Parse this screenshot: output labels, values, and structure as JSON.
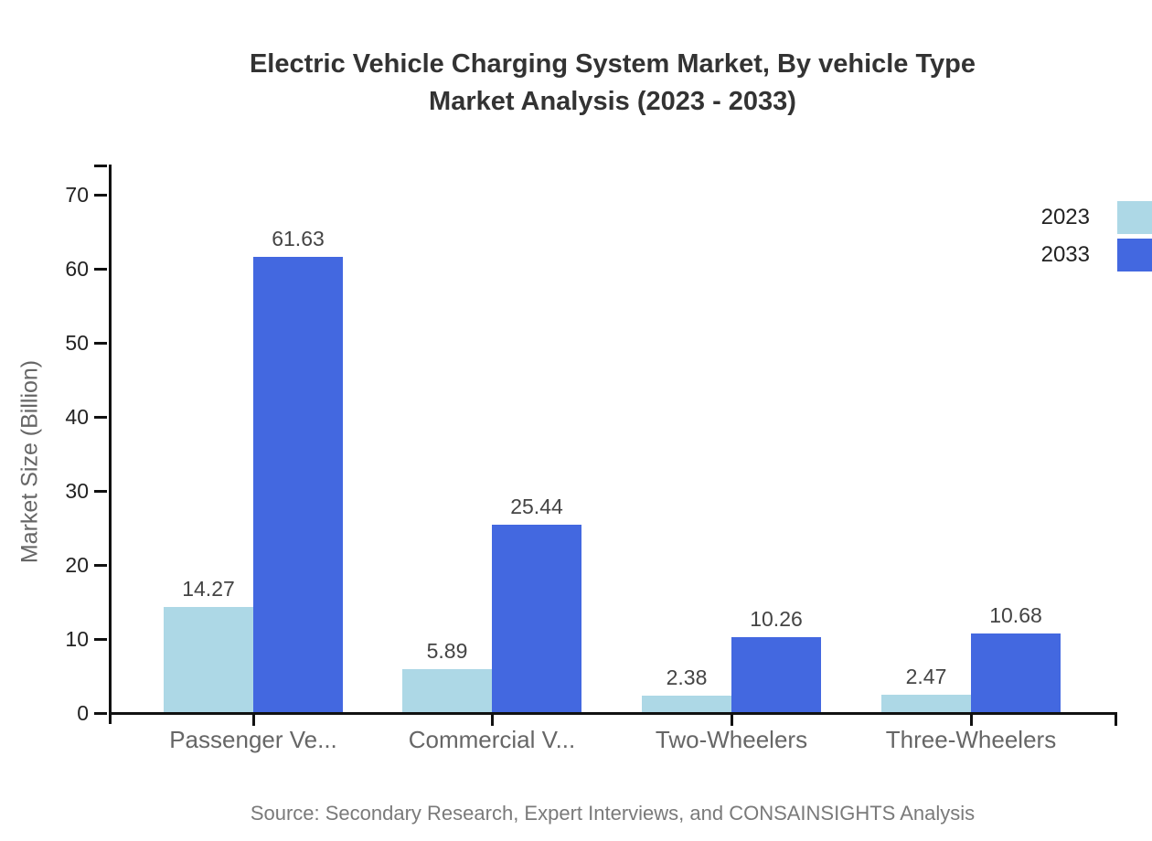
{
  "title": {
    "line1": "Electric Vehicle Charging System Market, By vehicle Type",
    "line2": "Market Analysis (2023 - 2033)"
  },
  "y_axis_title": "Market Size (Billion)",
  "source": "Source: Secondary Research, Expert Interviews, and CONSAINSIGHTS Analysis",
  "legend": {
    "items": [
      {
        "label": "2023",
        "color": "#ADD8E6"
      },
      {
        "label": "2033",
        "color": "#4368E0"
      }
    ]
  },
  "chart_data": {
    "type": "bar",
    "title": "Electric Vehicle Charging System Market, By vehicle Type - Market Analysis (2023 - 2033)",
    "categories": [
      "Passenger Ve...",
      "Commercial V...",
      "Two-Wheelers",
      "Three-Wheelers"
    ],
    "series": [
      {
        "name": "2023",
        "color": "#ADD8E6",
        "values": [
          14.27,
          5.89,
          2.38,
          2.47
        ]
      },
      {
        "name": "2033",
        "color": "#4368E0",
        "values": [
          61.63,
          25.44,
          10.26,
          10.68
        ]
      }
    ],
    "xlabel": "",
    "ylabel": "Market Size (Billion)",
    "ylim": [
      0,
      70
    ],
    "y_ticks": [
      0,
      10,
      20,
      30,
      40,
      50,
      60,
      70
    ],
    "grid": false,
    "legend_position": "top-right",
    "value_labels": true
  }
}
